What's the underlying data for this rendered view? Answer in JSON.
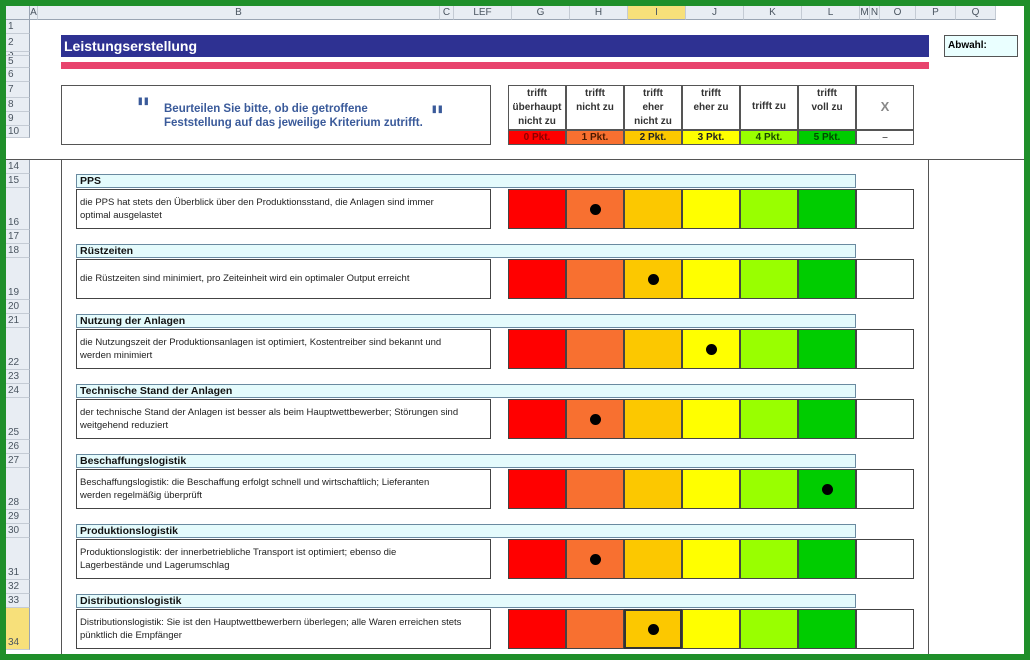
{
  "sheet": {
    "columns": [
      "A",
      "B",
      "C",
      "LEF",
      "G",
      "H",
      "I",
      "J",
      "K",
      "L",
      "M",
      "N",
      "O",
      "P",
      "Q"
    ],
    "selected_column": "I",
    "rows_top": [
      "1",
      "2",
      "3",
      "5",
      "6",
      "7",
      "8",
      "9",
      "10"
    ],
    "rows_bottom": [
      "14",
      "15",
      "16",
      "17",
      "18",
      "19",
      "20",
      "21",
      "22",
      "23",
      "24",
      "25",
      "26",
      "27",
      "28",
      "29",
      "30",
      "31",
      "32",
      "33",
      "34"
    ]
  },
  "title": "Leistungserstellung",
  "abwahl_label": "Abwahl:",
  "instruction": {
    "line1": "Beurteilen Sie bitte, ob die getroffene",
    "line2": "Feststellung auf das jeweilige Kriterium zutrifft.",
    "quote_open": "\"",
    "quote_close": "\""
  },
  "scale": [
    {
      "header": [
        "trifft",
        "überhaupt",
        "nicht zu"
      ],
      "points": "0 Pkt.",
      "color": "#ff0000",
      "text_color": "#8a0000"
    },
    {
      "header": [
        "trifft",
        "nicht zu"
      ],
      "points": "1 Pkt.",
      "color": "#f87030",
      "text_color": "#4a1a00"
    },
    {
      "header": [
        "trifft",
        "eher",
        "nicht zu"
      ],
      "points": "2 Pkt.",
      "color": "#fcc800",
      "text_color": "#222222"
    },
    {
      "header": [
        "trifft",
        "eher zu"
      ],
      "points": "3 Pkt.",
      "color": "#ffff00",
      "text_color": "#222222"
    },
    {
      "header": [
        "trifft zu"
      ],
      "points": "4 Pkt.",
      "color": "#99ff00",
      "text_color": "#1a4a00"
    },
    {
      "header": [
        "trifft",
        "voll zu"
      ],
      "points": "5 Pkt.",
      "color": "#00cc00",
      "text_color": "#004a00"
    },
    {
      "header": [
        "X"
      ],
      "points": "–",
      "color": "#ffffff",
      "text_color": "#666666"
    }
  ],
  "criteria": [
    {
      "title": "PPS",
      "lines": [
        "die PPS hat stets den Überblick über den Produktionsstand, die Anlagen sind immer",
        "optimal ausgelastet"
      ],
      "rating": 1
    },
    {
      "title": "Rüstzeiten",
      "lines": [
        "die Rüstzeiten sind minimiert, pro Zeiteinheit wird ein optimaler Output erreicht"
      ],
      "rating": 2
    },
    {
      "title": "Nutzung der Anlagen",
      "lines": [
        "die Nutzungszeit der Produktionsanlagen ist optimiert, Kostentreiber sind bekannt und",
        "werden minimiert"
      ],
      "rating": 3
    },
    {
      "title": "Technische Stand der Anlagen",
      "lines": [
        "der technische Stand der Anlagen ist besser als beim Hauptwettbewerber; Störungen sind",
        "weitgehend reduziert"
      ],
      "rating": 1
    },
    {
      "title": "Beschaffungslogistik",
      "lines": [
        "Beschaffungslogistik: die Beschaffung erfolgt schnell und wirtschaftlich; Lieferanten",
        "werden regelmäßig überprüft"
      ],
      "rating": 5
    },
    {
      "title": "Produktionslogistik",
      "lines": [
        "Produktionslogistik: der innerbetriebliche Transport ist optimiert; ebenso die",
        "Lagerbestände und Lagerumschlag"
      ],
      "rating": 1
    },
    {
      "title": "Distributionslogistik",
      "lines": [
        "Distributionslogistik: Sie ist den Hauptwettbewerbern überlegen; alle Waren erreichen stets",
        "pünktlich die Empfänger"
      ],
      "rating": 2
    }
  ]
}
